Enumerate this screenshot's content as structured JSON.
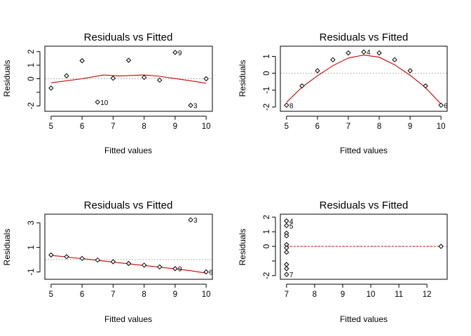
{
  "chart_data": [
    {
      "type": "scatter",
      "title": "Residuals vs Fitted",
      "xlabel": "Fitted values",
      "ylabel": "Residuals",
      "xlim": [
        4.8,
        10.2
      ],
      "ylim": [
        -2.4,
        2.4
      ],
      "xticks": [
        5,
        6,
        7,
        8,
        9,
        10
      ],
      "yticks": [
        -2,
        -1,
        0,
        1,
        2
      ],
      "ytick_labels": [
        "-2",
        "",
        "0",
        "1",
        "2"
      ],
      "points": [
        {
          "x": 5.0,
          "y": -0.69
        },
        {
          "x": 5.5,
          "y": 0.22
        },
        {
          "x": 6.0,
          "y": 1.33
        },
        {
          "x": 6.5,
          "y": -1.72,
          "label": "10"
        },
        {
          "x": 7.0,
          "y": 0.04
        },
        {
          "x": 7.5,
          "y": 1.36
        },
        {
          "x": 8.0,
          "y": 0.1
        },
        {
          "x": 8.5,
          "y": -0.1
        },
        {
          "x": 9.0,
          "y": 1.94,
          "label": "9"
        },
        {
          "x": 9.5,
          "y": -1.96,
          "label": "3"
        },
        {
          "x": 10.0,
          "y": 0.0
        }
      ],
      "smooth": [
        [
          5.0,
          -0.3
        ],
        [
          6.0,
          0.0
        ],
        [
          6.7,
          0.28
        ],
        [
          7.2,
          0.2
        ],
        [
          8.0,
          0.28
        ],
        [
          8.5,
          0.18
        ],
        [
          9.5,
          -0.15
        ],
        [
          10.0,
          -0.33
        ]
      ],
      "smooth_color": "#cc0000",
      "ref_color": "#999999"
    },
    {
      "type": "scatter",
      "title": "Residuals vs Fitted",
      "xlabel": "Fitted values",
      "ylabel": "Residuals",
      "xlim": [
        4.8,
        10.2
      ],
      "ylim": [
        -2.25,
        1.6
      ],
      "xticks": [
        5,
        6,
        7,
        8,
        9,
        10
      ],
      "yticks": [
        -2,
        -1,
        0,
        1
      ],
      "ytick_labels": [
        "-2",
        "-1",
        "0",
        "1"
      ],
      "points": [
        {
          "x": 5.0,
          "y": -1.89,
          "label": "8"
        },
        {
          "x": 5.5,
          "y": -0.75
        },
        {
          "x": 6.0,
          "y": 0.15
        },
        {
          "x": 6.5,
          "y": 0.8
        },
        {
          "x": 7.0,
          "y": 1.2
        },
        {
          "x": 7.5,
          "y": 1.26,
          "label": "4"
        },
        {
          "x": 8.0,
          "y": 1.2
        },
        {
          "x": 8.5,
          "y": 0.8
        },
        {
          "x": 9.0,
          "y": 0.15
        },
        {
          "x": 9.5,
          "y": -0.75
        },
        {
          "x": 10.0,
          "y": -1.89,
          "label": "6"
        }
      ],
      "smooth": [
        [
          5.0,
          -1.72
        ],
        [
          5.5,
          -0.82
        ],
        [
          6.0,
          -0.15
        ],
        [
          6.5,
          0.45
        ],
        [
          7.0,
          0.9
        ],
        [
          7.5,
          1.08
        ],
        [
          8.0,
          0.95
        ],
        [
          8.5,
          0.5
        ],
        [
          9.0,
          -0.12
        ],
        [
          9.5,
          -0.85
        ],
        [
          10.0,
          -1.82
        ]
      ],
      "smooth_color": "#cc0000",
      "ref_color": "#999999"
    },
    {
      "type": "scatter",
      "title": "Residuals vs Fitted",
      "xlabel": "Fitted values",
      "ylabel": "Residuals",
      "xlim": [
        4.8,
        10.2
      ],
      "ylim": [
        -1.6,
        3.7
      ],
      "xticks": [
        5,
        6,
        7,
        8,
        9,
        10
      ],
      "yticks": [
        -1,
        1,
        3
      ],
      "ytick_labels": [
        "-1",
        "1",
        "3"
      ],
      "points": [
        {
          "x": 5.0,
          "y": 0.38
        },
        {
          "x": 5.5,
          "y": 0.24
        },
        {
          "x": 6.0,
          "y": 0.1
        },
        {
          "x": 6.5,
          "y": -0.03
        },
        {
          "x": 7.0,
          "y": -0.17
        },
        {
          "x": 7.5,
          "y": -0.31
        },
        {
          "x": 8.0,
          "y": -0.45
        },
        {
          "x": 8.5,
          "y": -0.59
        },
        {
          "x": 9.0,
          "y": -0.73,
          "label": "9"
        },
        {
          "x": 9.5,
          "y": 3.24,
          "label": "3"
        },
        {
          "x": 10.0,
          "y": -1.0,
          "label": "6"
        }
      ],
      "smooth": [
        [
          5.0,
          0.35
        ],
        [
          6.0,
          0.08
        ],
        [
          7.0,
          -0.2
        ],
        [
          8.0,
          -0.48
        ],
        [
          9.0,
          -0.75
        ],
        [
          9.5,
          -0.9
        ],
        [
          10.0,
          -1.1
        ]
      ],
      "smooth_color": "#cc0000",
      "ref_color": "#999999"
    },
    {
      "type": "scatter",
      "title": "Residuals vs Fitted",
      "xlabel": "Fitted values",
      "ylabel": "Residuals",
      "xlim": [
        6.78,
        12.72
      ],
      "ylim": [
        -2.25,
        2.2
      ],
      "xticks": [
        7,
        8,
        9,
        10,
        11,
        12
      ],
      "yticks": [
        -2,
        -1,
        0,
        1,
        2
      ],
      "ytick_labels": [
        "-2",
        "",
        "0",
        "1",
        "2"
      ],
      "points": [
        {
          "x": 7,
          "y": 1.74,
          "label": "4"
        },
        {
          "x": 7,
          "y": 1.42,
          "label": "5"
        },
        {
          "x": 7,
          "y": 0.9
        },
        {
          "x": 7,
          "y": 0.72
        },
        {
          "x": 7,
          "y": 0.12
        },
        {
          "x": 7,
          "y": -0.1
        },
        {
          "x": 7,
          "y": -0.4
        },
        {
          "x": 7,
          "y": -1.24
        },
        {
          "x": 7,
          "y": -1.52
        },
        {
          "x": 7,
          "y": -1.92,
          "label": "7"
        },
        {
          "x": 12.5,
          "y": 0.0
        }
      ],
      "smooth": [
        [
          7,
          0.0
        ],
        [
          12.5,
          0.0
        ]
      ],
      "smooth_color": "#cc0000",
      "ref_color": "#999999"
    }
  ]
}
